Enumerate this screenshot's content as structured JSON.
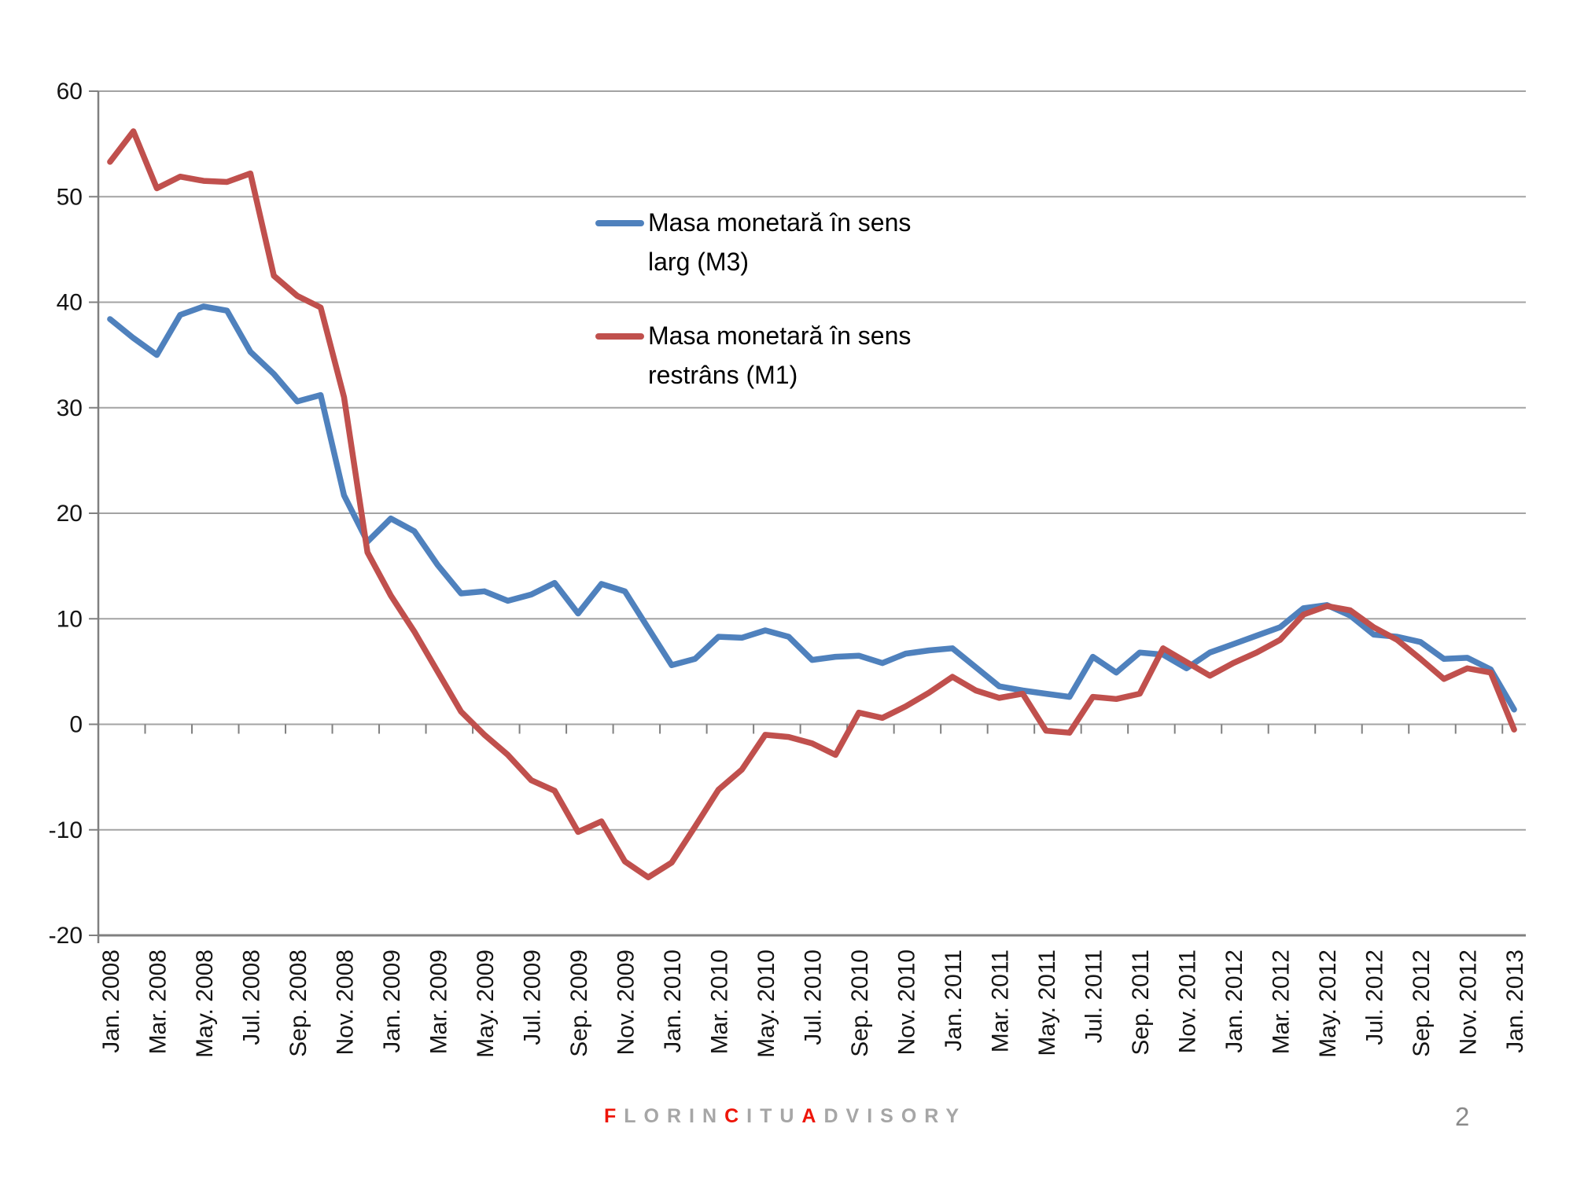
{
  "footer": {
    "brand_segments": [
      {
        "text": "F",
        "accent": true
      },
      {
        "text": "LORIN",
        "accent": false
      },
      {
        "text": "C",
        "accent": true
      },
      {
        "text": "ITU",
        "accent": false
      },
      {
        "text": "A",
        "accent": true
      },
      {
        "text": "DVISORY",
        "accent": false
      }
    ],
    "accent_color": "#ee1509",
    "base_color": "#a6a6a6"
  },
  "page_number": "2",
  "chart_data": {
    "type": "line",
    "title": "",
    "xlabel": "",
    "ylabel": "",
    "ylim": [
      -20,
      60
    ],
    "ytick_step": 10,
    "yticks": [
      60,
      50,
      40,
      30,
      20,
      10,
      0,
      -10,
      -20
    ],
    "grid": true,
    "xtick_label_every": 2,
    "legend_position": "inside-top-center",
    "x": [
      "Jan. 2008",
      "Feb. 2008",
      "Mar. 2008",
      "Apr. 2008",
      "May. 2008",
      "Jun. 2008",
      "Jul. 2008",
      "Aug. 2008",
      "Sep. 2008",
      "Oct. 2008",
      "Nov. 2008",
      "Dec. 2008",
      "Jan. 2009",
      "Feb. 2009",
      "Mar. 2009",
      "Apr. 2009",
      "May. 2009",
      "Jun. 2009",
      "Jul. 2009",
      "Aug. 2009",
      "Sep. 2009",
      "Oct. 2009",
      "Nov. 2009",
      "Dec. 2009",
      "Jan. 2010",
      "Feb. 2010",
      "Mar. 2010",
      "Apr. 2010",
      "May. 2010",
      "Jun. 2010",
      "Jul. 2010",
      "Aug. 2010",
      "Sep. 2010",
      "Oct. 2010",
      "Nov. 2010",
      "Dec. 2010",
      "Jan. 2011",
      "Feb. 2011",
      "Mar. 2011",
      "Apr. 2011",
      "May. 2011",
      "Jun. 2011",
      "Jul. 2011",
      "Aug. 2011",
      "Sep. 2011",
      "Oct. 2011",
      "Nov. 2011",
      "Dec. 2011",
      "Jan. 2012",
      "Feb. 2012",
      "Mar. 2012",
      "Apr. 2012",
      "May. 2012",
      "Jun. 2012",
      "Jul. 2012",
      "Aug. 2012",
      "Sep. 2012",
      "Oct. 2012",
      "Nov. 2012",
      "Dec. 2012",
      "Jan. 2013"
    ],
    "series": [
      {
        "name": "Masa monetară în sens larg (M3)",
        "color": "#4F81BD",
        "values": [
          38.4,
          36.6,
          35.0,
          38.8,
          39.6,
          39.2,
          35.3,
          33.2,
          30.6,
          31.2,
          21.7,
          17.3,
          19.5,
          18.3,
          15.1,
          12.4,
          12.6,
          11.7,
          12.3,
          13.4,
          10.5,
          13.3,
          12.6,
          9.1,
          5.6,
          6.2,
          8.3,
          8.2,
          8.9,
          8.3,
          6.1,
          6.4,
          6.5,
          5.8,
          6.7,
          7.0,
          7.2,
          5.4,
          3.6,
          3.2,
          2.9,
          2.6,
          6.4,
          4.9,
          6.8,
          6.6,
          5.3,
          6.8,
          7.6,
          8.4,
          9.2,
          11.0,
          11.3,
          10.3,
          8.5,
          8.3,
          7.8,
          6.2,
          6.3,
          5.2,
          1.4
        ]
      },
      {
        "name": "Masa monetară în sens restrâns (M1)",
        "color": "#C0504D",
        "values": [
          53.3,
          56.2,
          50.8,
          51.9,
          51.5,
          51.4,
          52.2,
          42.5,
          40.6,
          39.5,
          31.0,
          16.3,
          12.2,
          8.8,
          5.0,
          1.2,
          -1.0,
          -2.9,
          -5.3,
          -6.3,
          -10.2,
          -9.2,
          -13.0,
          -14.5,
          -13.1,
          -9.7,
          -6.2,
          -4.3,
          -1.0,
          -1.2,
          -1.8,
          -2.9,
          1.1,
          0.6,
          1.7,
          3.0,
          4.5,
          3.2,
          2.5,
          2.9,
          -0.6,
          -0.8,
          2.6,
          2.4,
          2.9,
          7.2,
          5.9,
          4.6,
          5.8,
          6.8,
          8.0,
          10.4,
          11.2,
          10.8,
          9.2,
          8.0,
          6.2,
          4.3,
          5.3,
          4.9,
          -0.5
        ]
      }
    ],
    "axis_colors": {
      "gridline": "#a3a3a3",
      "axis": "#808080",
      "tick": "#808080"
    }
  }
}
